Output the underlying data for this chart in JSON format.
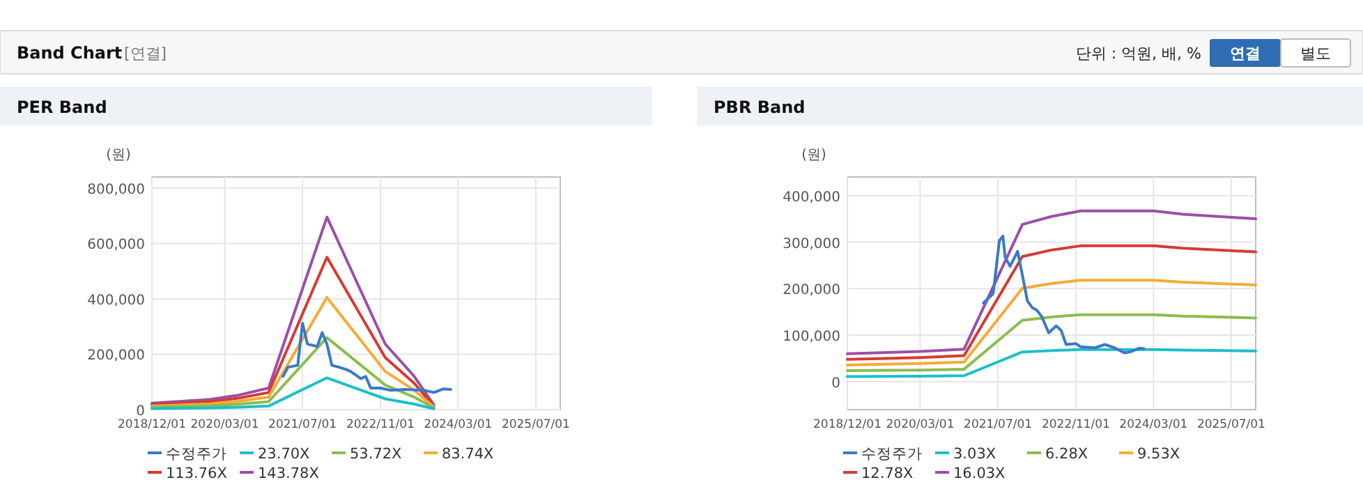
{
  "chart_data": [
    {
      "type": "other",
      "title": "Band Chart",
      "annotations": [
        "[연결]",
        "단위 : 억원, 배, %",
        "연결",
        "별도"
      ]
    },
    {
      "type": "line",
      "title": "PER Band",
      "ylabel": "(원)",
      "legend": "bottom",
      "grid": true,
      "xlim": [
        "2018-12-01",
        "2025-12-01"
      ],
      "xticks": [
        {
          "value": "2018-12-01",
          "label": "2018/12/01"
        },
        {
          "value": "2020-03-01",
          "label": "2020/03/01"
        },
        {
          "value": "2021-07-01",
          "label": "2021/07/01"
        },
        {
          "value": "2022-11-01",
          "label": "2022/11/01"
        },
        {
          "value": "2024-03-01",
          "label": "2024/03/01"
        },
        {
          "value": "2025-07-01",
          "label": "2025/07/01"
        }
      ],
      "ylim": [
        0,
        840000
      ],
      "yticks": [
        0,
        {
          "value": 200000,
          "label": "200,000"
        },
        {
          "value": 400000,
          "label": "400,000"
        },
        {
          "value": 600000,
          "label": "600,000"
        },
        {
          "value": 800000,
          "label": "800,000"
        }
      ],
      "series": [
        {
          "name": "수정주가",
          "color": "#3a78c9",
          "x": [
            "2021-03",
            "2021-04",
            "2021-06",
            "2021-07",
            "2021-08",
            "2021-10",
            "2021-11",
            "2021-12",
            "2022-01",
            "2022-02-15",
            "2022-04",
            "2022-05",
            "2022-07",
            "2022-08",
            "2022-09",
            "2022-11",
            "2023-01",
            "2023-04",
            "2023-08",
            "2023-10",
            "2023-12",
            "2024-01-15"
          ],
          "values": [
            120000,
            153000,
            160000,
            312000,
            237000,
            228000,
            278000,
            237000,
            160000,
            153000,
            145000,
            137000,
            112000,
            120000,
            78000,
            78000,
            70000,
            73000,
            70000,
            62000,
            75000,
            73000
          ]
        },
        {
          "name": "23.70X",
          "color": "#1cbfc9",
          "x": [
            "2018-12",
            "2019-12",
            "2020-06",
            "2020-12",
            "2021-12",
            "2022-12",
            "2023-06",
            "2023-10"
          ],
          "values": [
            4000,
            6000,
            9000,
            13000,
            115000,
            39000,
            20000,
            3000
          ]
        },
        {
          "name": "53.72X",
          "color": "#8bbd4e",
          "x": [
            "2018-12",
            "2019-12",
            "2020-06",
            "2020-12",
            "2021-12",
            "2022-12",
            "2023-06",
            "2023-10"
          ],
          "values": [
            9000,
            14000,
            20000,
            29000,
            260000,
            89000,
            45000,
            6000
          ]
        },
        {
          "name": "83.74X",
          "color": "#f5ab35",
          "x": [
            "2018-12",
            "2019-12",
            "2020-06",
            "2020-12",
            "2021-12",
            "2022-12",
            "2023-06",
            "2023-10"
          ],
          "values": [
            13000,
            21000,
            31000,
            45000,
            405000,
            138000,
            70000,
            10000
          ]
        },
        {
          "name": "113.76X",
          "color": "#d73a32",
          "x": [
            "2018-12",
            "2019-12",
            "2020-06",
            "2020-12",
            "2021-12",
            "2022-12",
            "2023-06",
            "2023-10"
          ],
          "values": [
            18000,
            29000,
            42000,
            62000,
            550000,
            188000,
            95000,
            13000
          ]
        },
        {
          "name": "143.78X",
          "color": "#9b4fa8",
          "x": [
            "2018-12",
            "2019-12",
            "2020-06",
            "2020-12",
            "2021-12",
            "2022-12",
            "2023-06",
            "2023-10"
          ],
          "values": [
            23000,
            37000,
            53000,
            78000,
            695000,
            237000,
            120000,
            17000
          ]
        }
      ]
    },
    {
      "type": "line",
      "title": "PBR Band",
      "ylabel": "(원)",
      "legend": "bottom",
      "grid": true,
      "xlim": [
        "2018-12-01",
        "2025-12-01"
      ],
      "xticks": [
        {
          "value": "2018-12-01",
          "label": "2018/12/01"
        },
        {
          "value": "2020-03-01",
          "label": "2020/03/01"
        },
        {
          "value": "2021-07-01",
          "label": "2021/07/01"
        },
        {
          "value": "2022-11-01",
          "label": "2022/11/01"
        },
        {
          "value": "2024-03-01",
          "label": "2024/03/01"
        },
        {
          "value": "2025-07-01",
          "label": "2025/07/01"
        }
      ],
      "ylim": [
        -60000,
        440000
      ],
      "yticks": [
        0,
        {
          "value": 100000,
          "label": "100,000"
        },
        {
          "value": 200000,
          "label": "200,000"
        },
        {
          "value": 300000,
          "label": "300,000"
        },
        {
          "value": 400000,
          "label": "400,000"
        }
      ],
      "series": [
        {
          "name": "수정주가",
          "color": "#3a78c9",
          "x": [
            "2021-04",
            "2021-06",
            "2021-07-10",
            "2021-08",
            "2021-08-15",
            "2021-09-15",
            "2021-11",
            "2021-12",
            "2022-01",
            "2022-02",
            "2022-03",
            "2022-04",
            "2022-05-15",
            "2022-07",
            "2022-08",
            "2022-09",
            "2022-11",
            "2022-12",
            "2023-03",
            "2023-05",
            "2023-07",
            "2023-09",
            "2023-10-15",
            "2023-12",
            "2024-01"
          ],
          "values": [
            169000,
            189000,
            303000,
            313000,
            268000,
            248000,
            280000,
            229000,
            174000,
            159000,
            154000,
            140000,
            105000,
            120000,
            110000,
            80000,
            82000,
            75000,
            73000,
            80000,
            73000,
            62000,
            65000,
            72000,
            71000
          ]
        },
        {
          "name": "3.03X",
          "color": "#1cbfc9",
          "x": [
            "2018-12",
            "2020-03",
            "2020-12",
            "2021-12",
            "2022-06",
            "2022-12",
            "2024-03",
            "2024-09",
            "2025-12"
          ],
          "values": [
            11000,
            12000,
            13000,
            64000,
            67000,
            69000,
            69000,
            68000,
            66000
          ]
        },
        {
          "name": "6.28X",
          "color": "#8bbd4e",
          "x": [
            "2018-12",
            "2020-03",
            "2020-12",
            "2021-12",
            "2022-06",
            "2022-12",
            "2024-03",
            "2024-09",
            "2025-12"
          ],
          "values": [
            24000,
            25000,
            27000,
            132000,
            139000,
            144000,
            144000,
            141000,
            137000
          ]
        },
        {
          "name": "9.53X",
          "color": "#f5ab35",
          "x": [
            "2018-12",
            "2020-03",
            "2020-12",
            "2021-12",
            "2022-06",
            "2022-12",
            "2024-03",
            "2024-09",
            "2025-12"
          ],
          "values": [
            36000,
            39000,
            42000,
            201000,
            211000,
            218000,
            218000,
            214000,
            208000
          ]
        },
        {
          "name": "12.78X",
          "color": "#d73a32",
          "x": [
            "2018-12",
            "2020-03",
            "2020-12",
            "2021-12",
            "2022-06",
            "2022-12",
            "2024-03",
            "2024-09",
            "2025-12"
          ],
          "values": [
            48000,
            52000,
            56000,
            269000,
            283000,
            292000,
            292000,
            287000,
            279000
          ]
        },
        {
          "name": "16.03X",
          "color": "#9b4fa8",
          "x": [
            "2018-12",
            "2020-03",
            "2020-12",
            "2021-12",
            "2022-06",
            "2022-12",
            "2024-03",
            "2024-09",
            "2025-12"
          ],
          "values": [
            60000,
            65000,
            70000,
            338000,
            355000,
            367000,
            367000,
            360000,
            350000
          ]
        }
      ]
    }
  ]
}
